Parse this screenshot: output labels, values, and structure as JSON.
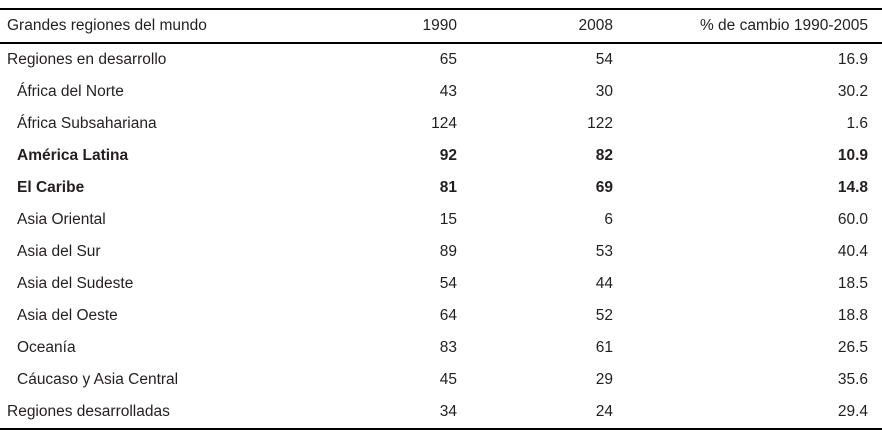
{
  "chart_data": {
    "type": "table",
    "title": "",
    "columns": [
      "Grandes regiones del mundo",
      "1990",
      "2008",
      "% de cambio 1990-2005"
    ],
    "rows": [
      {
        "region": "Regiones en desarrollo",
        "y1990": "65",
        "y2008": "54",
        "change": "16.9",
        "indent": false,
        "bold": false
      },
      {
        "region": "África del Norte",
        "y1990": "43",
        "y2008": "30",
        "change": "30.2",
        "indent": true,
        "bold": false
      },
      {
        "region": "África Subsahariana",
        "y1990": "124",
        "y2008": "122",
        "change": "1.6",
        "indent": true,
        "bold": false
      },
      {
        "region": "América Latina",
        "y1990": "92",
        "y2008": "82",
        "change": "10.9",
        "indent": true,
        "bold": true
      },
      {
        "region": "El Caribe",
        "y1990": "81",
        "y2008": "69",
        "change": "14.8",
        "indent": true,
        "bold": true
      },
      {
        "region": "Asia Oriental",
        "y1990": "15",
        "y2008": "6",
        "change": "60.0",
        "indent": true,
        "bold": false
      },
      {
        "region": "Asia del Sur",
        "y1990": "89",
        "y2008": "53",
        "change": "40.4",
        "indent": true,
        "bold": false
      },
      {
        "region": "Asia del Sudeste",
        "y1990": "54",
        "y2008": "44",
        "change": "18.5",
        "indent": true,
        "bold": false
      },
      {
        "region": "Asia del Oeste",
        "y1990": "64",
        "y2008": "52",
        "change": "18.8",
        "indent": true,
        "bold": false
      },
      {
        "region": "Oceanía",
        "y1990": "83",
        "y2008": "61",
        "change": "26.5",
        "indent": true,
        "bold": false
      },
      {
        "region": "Cáucaso y Asia Central",
        "y1990": "45",
        "y2008": "29",
        "change": "35.6",
        "indent": true,
        "bold": false
      },
      {
        "region": "Regiones desarrolladas",
        "y1990": "34",
        "y2008": "24",
        "change": "29.4",
        "indent": false,
        "bold": false
      }
    ],
    "colors": {
      "text": "#231f20",
      "rule": "#000000",
      "background": "#ffffff"
    },
    "layout": {
      "grid": "horizontal rules only: top, below header, bottom",
      "numeric_alignment": "right"
    }
  }
}
